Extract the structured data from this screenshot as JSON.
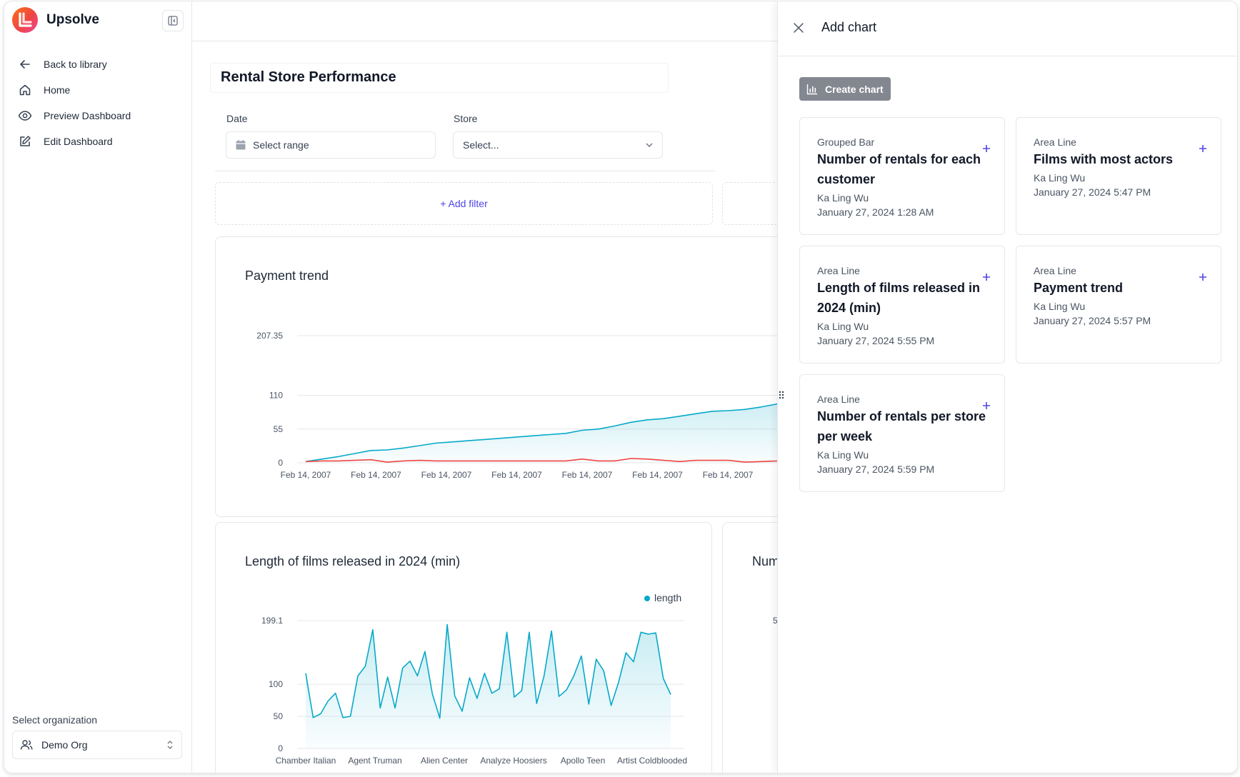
{
  "app": {
    "name": "Upsolve"
  },
  "sidebar": {
    "nav": [
      {
        "label": "Back to library",
        "icon": "arrow-left-icon"
      },
      {
        "label": "Home",
        "icon": "home-icon"
      },
      {
        "label": "Preview Dashboard",
        "icon": "eye-icon"
      },
      {
        "label": "Edit Dashboard",
        "icon": "edit-icon"
      }
    ],
    "org_label": "Select organization",
    "org_value": "Demo Org"
  },
  "dashboard": {
    "title": "Rental Store Performance",
    "filters": {
      "date_label": "Date",
      "date_placeholder": "Select range",
      "store_label": "Store",
      "store_placeholder": "Select...",
      "add_filter": "+ Add filter"
    }
  },
  "colors": {
    "accent": "#4f46e5",
    "line_primary": "#06a9c9",
    "line_secondary": "#ef4444",
    "button_gray": "#838790"
  },
  "charts": {
    "payment_trend": {
      "title": "Payment trend"
    },
    "film_length": {
      "title": "Length of films released in 2024 (min)"
    },
    "partial_title": "Num",
    "partial_tick": "5"
  },
  "chart_data": [
    {
      "type": "area",
      "title": "Payment trend",
      "x_ticks": [
        "Feb 14, 2007",
        "Feb 14, 2007",
        "Feb 14, 2007",
        "Feb 14, 2007",
        "Feb 14, 2007",
        "Feb 14, 2007",
        "Feb 14, 2007"
      ],
      "y_ticks": [
        0,
        55,
        110,
        207.35
      ],
      "ylim": [
        0,
        207.35
      ],
      "series": [
        {
          "values": [
            2,
            6,
            10,
            15,
            20,
            21,
            24,
            28,
            32,
            34,
            36,
            38,
            40,
            42,
            44,
            46,
            48,
            53,
            55,
            60,
            66,
            70,
            72,
            76,
            80,
            84,
            85,
            87,
            91,
            96,
            100,
            103,
            106,
            109,
            110
          ]
        },
        {
          "values": [
            2,
            3,
            3,
            4,
            5,
            1,
            3,
            4,
            3,
            3,
            3,
            3,
            3,
            3,
            3,
            3,
            3,
            6,
            3,
            3,
            7,
            6,
            4,
            2,
            4,
            4,
            4,
            1,
            2,
            3,
            6,
            6,
            5,
            4,
            4
          ]
        }
      ],
      "xlabel": "",
      "ylabel": "",
      "grid": true
    },
    {
      "type": "area",
      "title": "Length of films released in 2024 (min)",
      "legend": [
        "length"
      ],
      "legend_position": "top-right",
      "x_ticks": [
        "Chamber Italian",
        "Agent Truman",
        "Alien Center",
        "Analyze Hoosiers",
        "Apollo Teen",
        "Artist Coldblooded"
      ],
      "y_ticks": [
        0,
        50,
        100,
        199.1
      ],
      "ylim": [
        0,
        199.1
      ],
      "series": [
        {
          "name": "length",
          "values": [
            117,
            48,
            54,
            74,
            86,
            48,
            50,
            113,
            128,
            185,
            63,
            111,
            63,
            125,
            136,
            113,
            151,
            85,
            47,
            193,
            82,
            58,
            110,
            78,
            117,
            86,
            93,
            181,
            80,
            90,
            181,
            70,
            113,
            183,
            81,
            91,
            113,
            144,
            69,
            139,
            121,
            67,
            103,
            149,
            135,
            181,
            178,
            180,
            109,
            84
          ]
        }
      ],
      "xlabel": "",
      "ylabel": "",
      "grid": true
    }
  ],
  "panel": {
    "title": "Add chart",
    "create_label": "Create chart",
    "templates": [
      {
        "kind": "Grouped Bar",
        "name": "Number of rentals for each customer",
        "author": "Ka Ling Wu",
        "date": "January 27, 2024 1:28 AM"
      },
      {
        "kind": "Area Line",
        "name": "Films with most actors",
        "author": "Ka Ling Wu",
        "date": "January 27, 2024 5:47 PM"
      },
      {
        "kind": "Area Line",
        "name": "Length of films released in 2024 (min)",
        "author": "Ka Ling Wu",
        "date": "January 27, 2024 5:55 PM"
      },
      {
        "kind": "Area Line",
        "name": "Payment trend",
        "author": "Ka Ling Wu",
        "date": "January 27, 2024 5:57 PM"
      },
      {
        "kind": "Area Line",
        "name": "Number of rentals per store per week",
        "author": "Ka Ling Wu",
        "date": "January 27, 2024 5:59 PM"
      }
    ]
  }
}
